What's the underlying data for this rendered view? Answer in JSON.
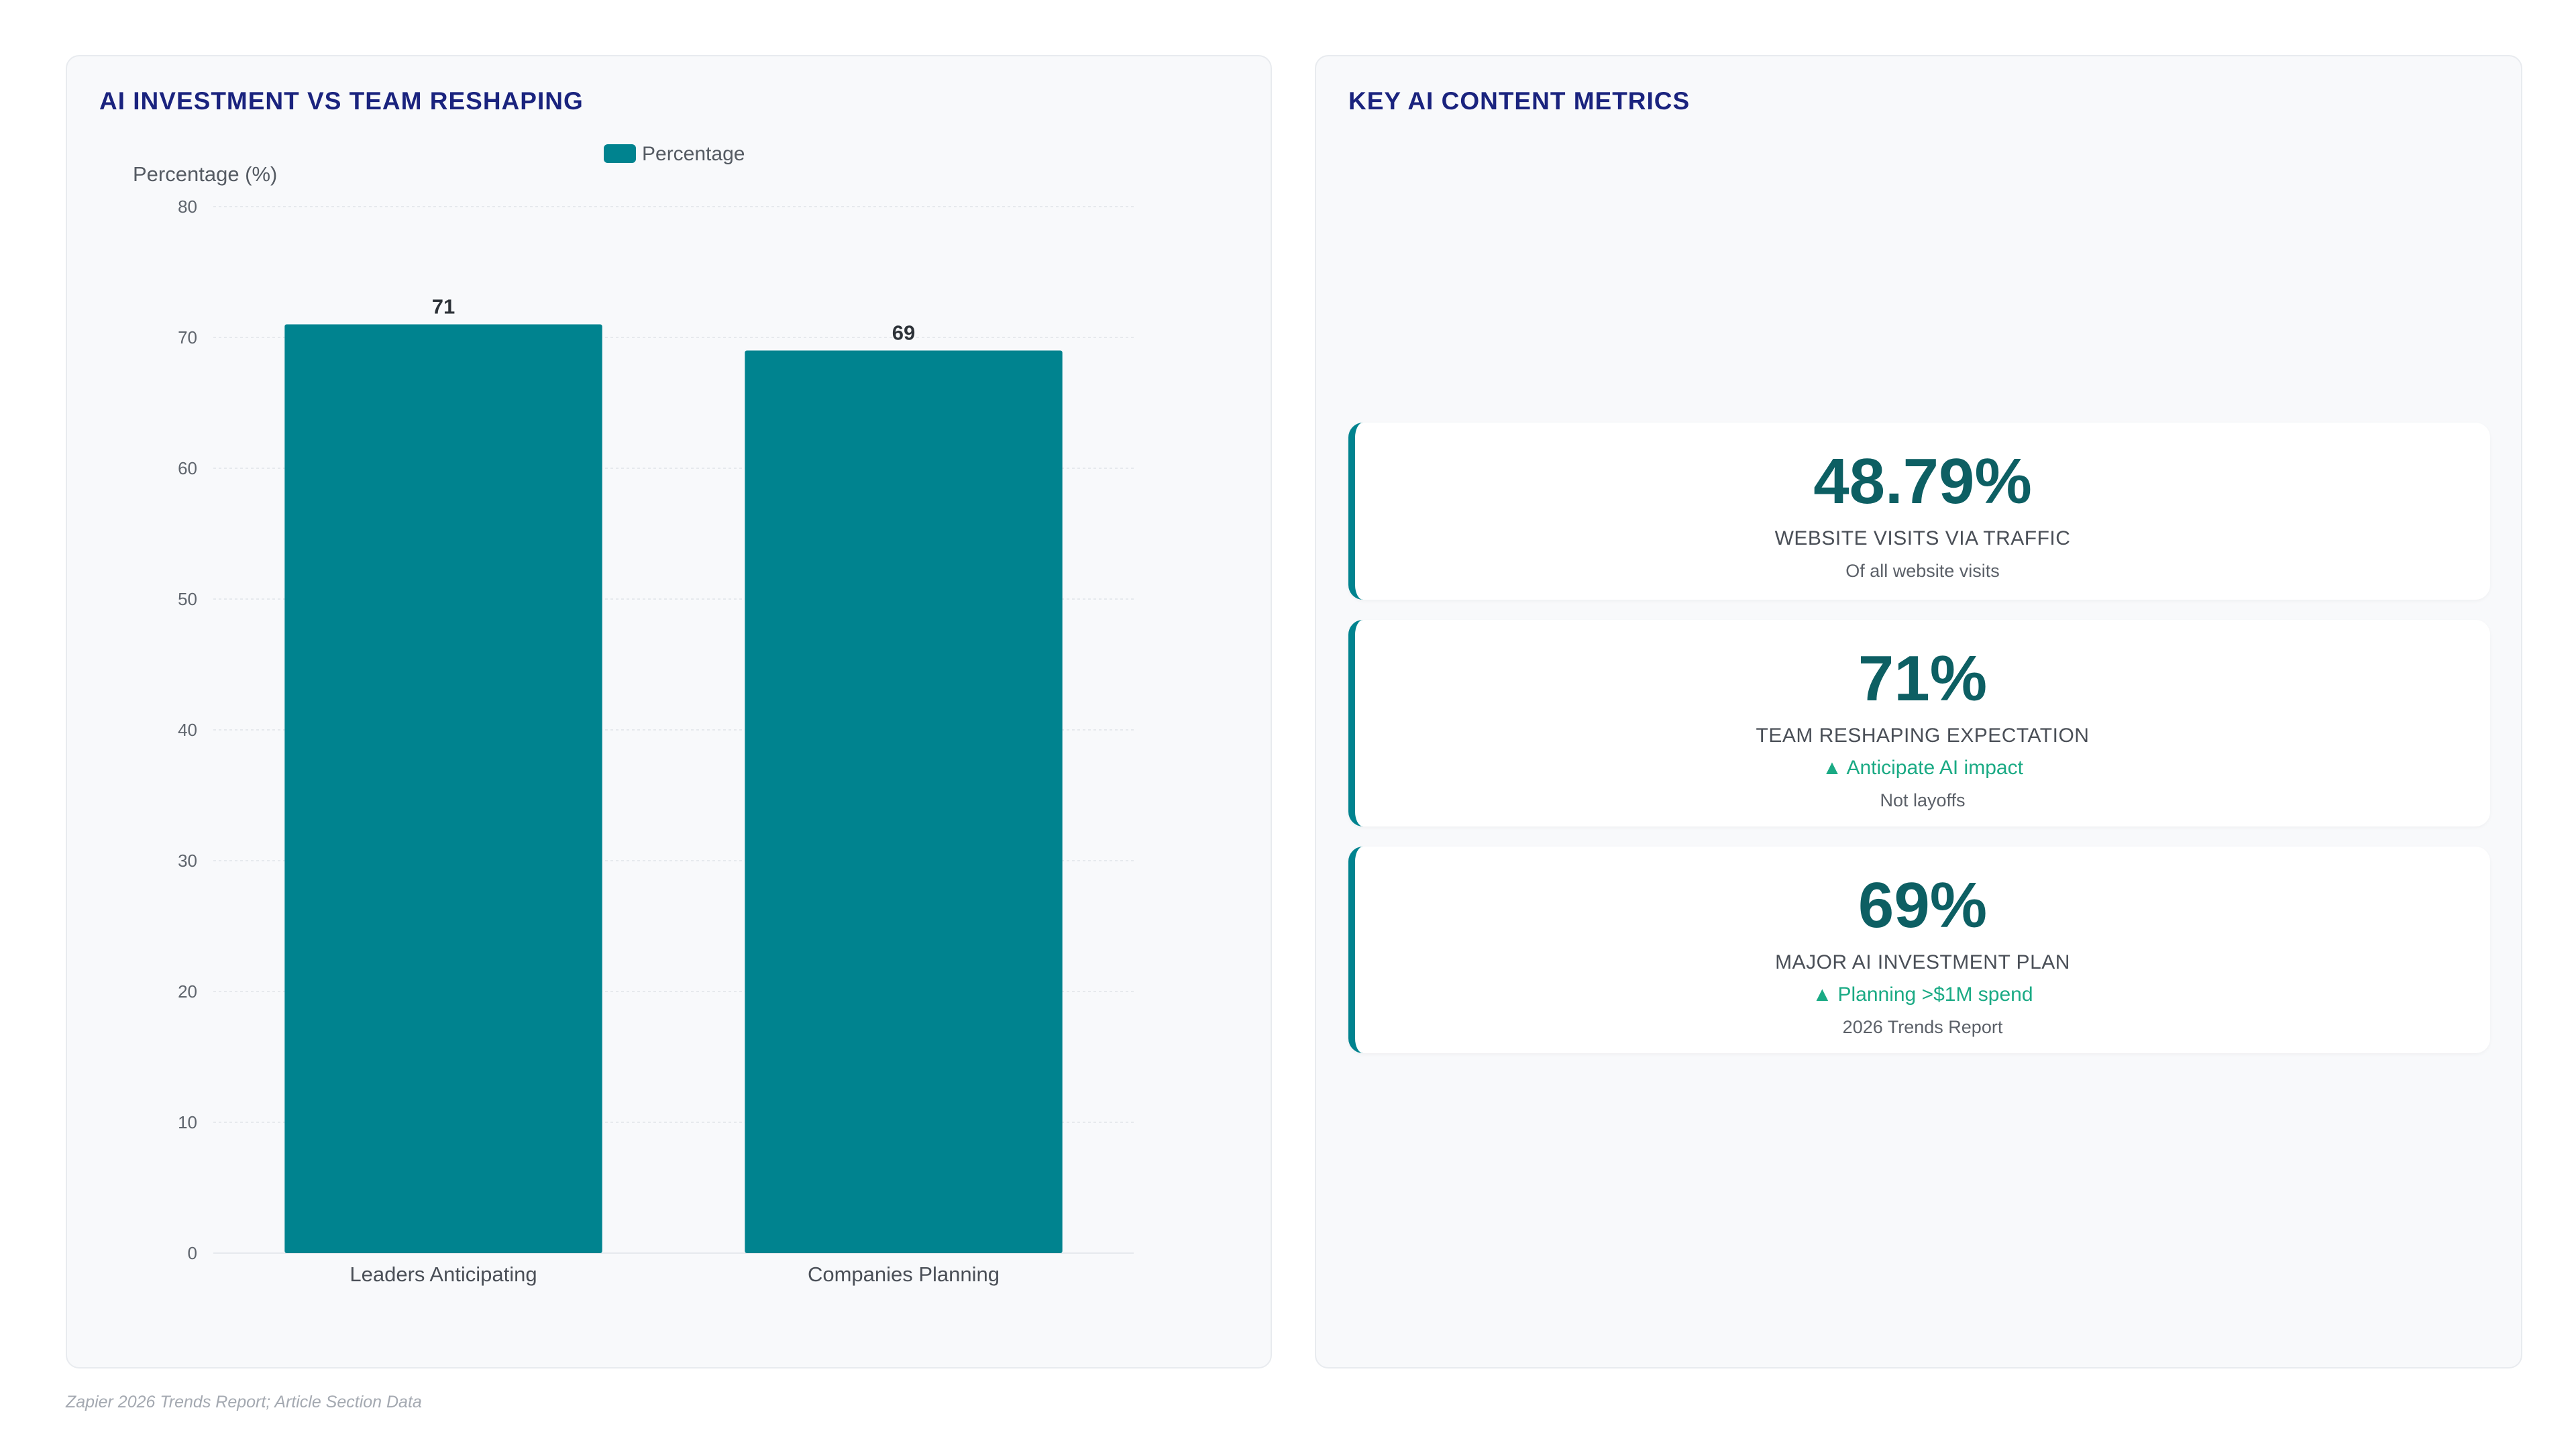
{
  "left_panel": {
    "title": "AI INVESTMENT VS TEAM RESHAPING"
  },
  "right_panel": {
    "title": "KEY AI CONTENT METRICS",
    "metrics": [
      {
        "value": "48.79%",
        "label": "WEBSITE VISITS VIA TRAFFIC",
        "trend": "",
        "sub": "Of all website visits"
      },
      {
        "value": "71%",
        "label": "TEAM RESHAPING EXPECTATION",
        "trend": "▲ Anticipate AI impact",
        "sub": "Not layoffs"
      },
      {
        "value": "69%",
        "label": "MAJOR AI INVESTMENT PLAN",
        "trend": "▲ Planning >$1M spend",
        "sub": "2026 Trends Report"
      }
    ]
  },
  "chart_data": {
    "type": "bar",
    "title": "",
    "categories": [
      "Leaders Anticipating",
      "Companies Planning"
    ],
    "series": [
      {
        "name": "Percentage",
        "values": [
          71,
          69
        ]
      }
    ],
    "xlabel": "",
    "ylabel": "Percentage (%)",
    "ylim": [
      0,
      80
    ],
    "yticks": [
      0,
      10,
      20,
      30,
      40,
      50,
      60,
      70,
      80
    ],
    "grid": true,
    "legend": "top-center",
    "bar_color": "#00838f"
  },
  "footer": {
    "source": "Zapier 2026 Trends Report; Article Section Data"
  },
  "colors": {
    "title": "#1a237e",
    "accent": "#00838f",
    "metric_value": "#0d5f63",
    "trend_up": "#1aaa84"
  }
}
